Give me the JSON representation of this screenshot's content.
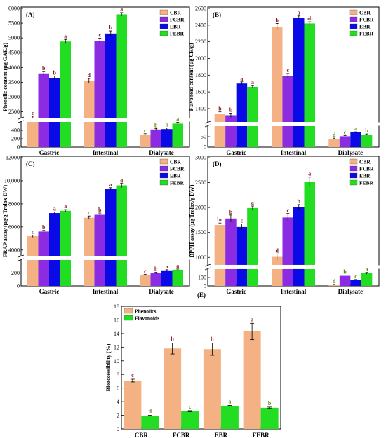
{
  "colors": {
    "CBR": "#f4b183",
    "FCBR": "#8b2be2",
    "EBR": "#0a0ae6",
    "FEBR": "#22dd22",
    "Phenolics": "#f4b183",
    "Flavonoids": "#22dd22",
    "errorbar": "#000000",
    "letters_top": "#8b1a1a",
    "letters_bottom": "#5a8a00"
  },
  "chart_data": [
    {
      "type": "bar",
      "panel": "(A)",
      "ylabel": "Phenolic content (µg GAE/g)",
      "categories": [
        "Gastric",
        "Intestinal",
        "Dialysate"
      ],
      "series": [
        {
          "name": "CBR",
          "values": [
            2300,
            3550,
            300
          ],
          "errors": [
            50,
            80,
            20
          ],
          "letters": [
            "c",
            "d",
            "c"
          ]
        },
        {
          "name": "FCBR",
          "values": [
            3800,
            4900,
            420
          ],
          "errors": [
            60,
            90,
            25
          ],
          "letters": [
            "b",
            "c",
            "b"
          ]
        },
        {
          "name": "EBR",
          "values": [
            3650,
            5150,
            430
          ],
          "errors": [
            60,
            90,
            25
          ],
          "letters": [
            "b",
            "b",
            "b"
          ]
        },
        {
          "name": "FEBR",
          "values": [
            4880,
            5800,
            560
          ],
          "errors": [
            70,
            60,
            30
          ],
          "letters": [
            "a",
            "a",
            "a"
          ]
        }
      ],
      "axis_break": {
        "lower": [
          0,
          600
        ],
        "upper": [
          2300,
          6000
        ]
      },
      "ticks": [
        0,
        200,
        400,
        2500,
        3000,
        3500,
        4000,
        4500,
        5000,
        5500,
        6000
      ],
      "legend": "top-right"
    },
    {
      "type": "bar",
      "panel": "(B)",
      "ylabel": "Flavonoid content (µg CE/g)",
      "categories": [
        "Gastric",
        "Intestinal",
        "Dialysate"
      ],
      "series": [
        {
          "name": "CBR",
          "values": [
            1340,
            2380,
            40
          ],
          "errors": [
            20,
            40,
            3
          ],
          "letters": [
            "b",
            "b",
            "d"
          ]
        },
        {
          "name": "FCBR",
          "values": [
            1320,
            1790,
            52
          ],
          "errors": [
            25,
            30,
            3
          ],
          "letters": [
            "b",
            "c",
            "c"
          ]
        },
        {
          "name": "EBR",
          "values": [
            1700,
            2490,
            70
          ],
          "errors": [
            20,
            20,
            3
          ],
          "letters": [
            "a",
            "a",
            "a"
          ]
        },
        {
          "name": "FEBR",
          "values": [
            1660,
            2420,
            60
          ],
          "errors": [
            15,
            20,
            3
          ],
          "letters": [
            "a",
            "ab",
            "b"
          ]
        }
      ],
      "axis_break": {
        "lower": [
          0,
          100
        ],
        "upper": [
          1240,
          2600
        ]
      },
      "ticks": [
        0,
        50,
        1400,
        1600,
        1800,
        2000,
        2200,
        2400,
        2600
      ],
      "legend": "top-right"
    },
    {
      "type": "bar",
      "panel": "(C)",
      "ylabel": "FRAP assay (µg/g Trolox DW)",
      "categories": [
        "Gastric",
        "Intestinal",
        "Dialysate"
      ],
      "series": [
        {
          "name": "CBR",
          "values": [
            5200,
            6800,
            170
          ],
          "errors": [
            100,
            150,
            10
          ],
          "letters": [
            "c",
            "c",
            "c"
          ]
        },
        {
          "name": "FCBR",
          "values": [
            5600,
            7050,
            200
          ],
          "errors": [
            100,
            150,
            10
          ],
          "letters": [
            "b",
            "b",
            "b"
          ]
        },
        {
          "name": "EBR",
          "values": [
            7200,
            9300,
            240
          ],
          "errors": [
            100,
            100,
            10
          ],
          "letters": [
            "a",
            "a",
            "a"
          ]
        },
        {
          "name": "FEBR",
          "values": [
            7400,
            9600,
            250
          ],
          "errors": [
            100,
            200,
            10
          ],
          "letters": [
            "a",
            "a",
            "a"
          ]
        }
      ],
      "axis_break": {
        "lower": [
          0,
          400
        ],
        "upper": [
          3500,
          12000
        ]
      },
      "ticks": [
        0,
        200,
        4000,
        6000,
        8000,
        "10,000",
        12000
      ],
      "legend": "top-right"
    },
    {
      "type": "bar",
      "panel": "(D)",
      "ylabel": "DPPH assay (µg Trolox/g DW)",
      "categories": [
        "Gastric",
        "Intestinal",
        "Dialysate"
      ],
      "series": [
        {
          "name": "CBR",
          "values": [
            1650,
            1010,
            15
          ],
          "errors": [
            40,
            60,
            3
          ],
          "letters": [
            "bc",
            "d",
            "d"
          ]
        },
        {
          "name": "FCBR",
          "values": [
            1780,
            1800,
            120
          ],
          "errors": [
            70,
            80,
            8
          ],
          "letters": [
            "b",
            "c",
            "b"
          ]
        },
        {
          "name": "EBR",
          "values": [
            1610,
            2010,
            70
          ],
          "errors": [
            60,
            50,
            6
          ],
          "letters": [
            "c",
            "b",
            "c"
          ]
        },
        {
          "name": "FEBR",
          "values": [
            1990,
            2520,
            150
          ],
          "errors": [
            40,
            90,
            10
          ],
          "letters": [
            "a",
            "a",
            "a"
          ]
        }
      ],
      "axis_break": {
        "lower": [
          0,
          200
        ],
        "upper": [
          850,
          3000
        ]
      },
      "ticks": [
        0,
        100,
        1000,
        1500,
        2000,
        2500,
        3000
      ],
      "legend": "top-right"
    },
    {
      "type": "bar",
      "panel": "(E)",
      "ylabel": "Bioaccessibility (%)",
      "categories": [
        "CBR",
        "FCBR",
        "EBR",
        "FEBR"
      ],
      "series": [
        {
          "name": "Phenolics",
          "values": [
            7.1,
            11.8,
            11.7,
            14.3
          ],
          "errors": [
            0.2,
            0.8,
            0.9,
            1.2
          ],
          "letters": [
            "c",
            "b",
            "b",
            "a"
          ]
        },
        {
          "name": "Flavonoids",
          "values": [
            1.95,
            2.6,
            3.4,
            3.1
          ],
          "errors": [
            0.05,
            0.08,
            0.05,
            0.1
          ],
          "letters": [
            "d",
            "c",
            "a",
            "b"
          ]
        }
      ],
      "ylim": [
        0,
        18
      ],
      "ticks": [
        0,
        2,
        4,
        6,
        8,
        10,
        12,
        14,
        16,
        18
      ],
      "legend": "top-left"
    }
  ]
}
